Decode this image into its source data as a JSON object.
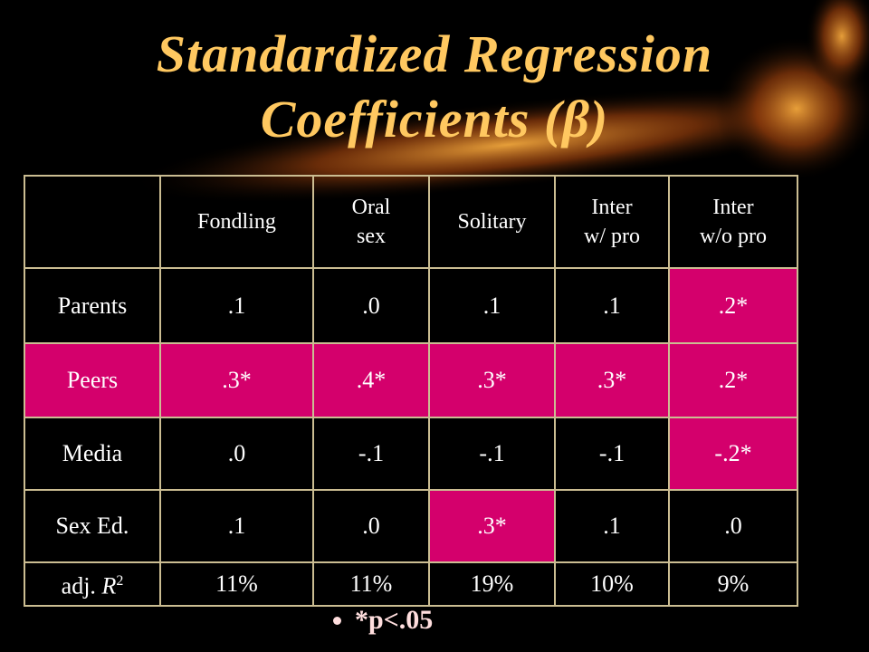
{
  "title": [
    "Standardized Regression",
    "Coefficients (β)"
  ],
  "table": {
    "header": [
      "Fondling",
      "Oral\nsex",
      "Solitary",
      "Inter\nw/ pro",
      "Inter\nw/o pro"
    ],
    "rows": [
      {
        "label": "Parents",
        "cells": [
          ".1",
          ".0",
          ".1",
          ".1",
          ".2*"
        ]
      },
      {
        "label": "Peers",
        "cells": [
          ".3*",
          ".4*",
          ".3*",
          ".3*",
          ".2*"
        ]
      },
      {
        "label": "Media",
        "cells": [
          ".0",
          "-.1",
          "-.1",
          "-.1",
          "-.2*"
        ]
      },
      {
        "label": "Sex Ed.",
        "cells": [
          ".1",
          ".0",
          ".3*",
          ".1",
          ".0"
        ]
      }
    ],
    "fit_row": {
      "label_prefix": "adj.",
      "label_variable": "R",
      "label_superscript": "2",
      "cells": [
        "11%",
        "11%",
        "19%",
        "10%",
        "9%"
      ]
    }
  },
  "footnote": "*p<.05"
}
